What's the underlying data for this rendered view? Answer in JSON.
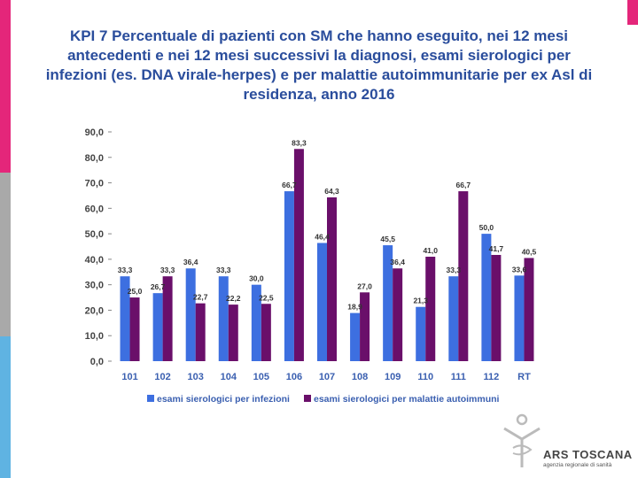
{
  "colors": {
    "series1": "#3d6fe0",
    "series2": "#6a0f6a",
    "magenta": "#e4267a",
    "grey": "#a9a9a9",
    "lightblue": "#5fb3e2",
    "title": "#2a4d9c"
  },
  "chart_data": {
    "type": "bar",
    "title": "KPI 7 Percentuale di pazienti con SM che hanno eseguito, nei 12 mesi antecedenti e nei 12 mesi successivi la diagnosi, esami sierologici per infezioni (es. DNA virale-herpes) e per malattie autoimmunitarie per ex Asl di residenza, anno 2016",
    "categories": [
      "101",
      "102",
      "103",
      "104",
      "105",
      "106",
      "107",
      "108",
      "109",
      "110",
      "111",
      "112",
      "RT"
    ],
    "yticks": [
      "90,0",
      "80,0",
      "70,0",
      "60,0",
      "50,0",
      "40,0",
      "30,0",
      "20,0",
      "10,0",
      "0,0"
    ],
    "ylim": [
      0,
      90
    ],
    "legend_position": "bottom",
    "series": [
      {
        "name": "esami sierologici per infezioni",
        "values": [
          33.3,
          26.7,
          36.4,
          33.3,
          30.0,
          66.7,
          46.4,
          18.9,
          45.5,
          21.3,
          33.3,
          50.0,
          33.6
        ],
        "labels": [
          "33,3",
          "26,7",
          "36,4",
          "33,3",
          "30,0",
          "66,7",
          "46,4",
          "18,9",
          "45,5",
          "21,3",
          "33,3",
          "50,0",
          "33,6"
        ]
      },
      {
        "name": "esami sierologici per malattie autoimmuni",
        "values": [
          25.0,
          33.3,
          22.7,
          22.2,
          22.5,
          83.3,
          64.3,
          27.0,
          36.4,
          41.0,
          66.7,
          41.7,
          40.5
        ],
        "labels": [
          "25,0",
          "33,3",
          "22,7",
          "22,2",
          "22,5",
          "83,3",
          "64,3",
          "27,0",
          "36,4",
          "41,0",
          "66,7",
          "41,7",
          "40,5"
        ]
      }
    ]
  },
  "logo": {
    "name": "ARS TOSCANA",
    "subtitle": "agenzia regionale di sanità"
  }
}
